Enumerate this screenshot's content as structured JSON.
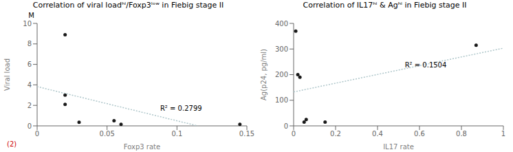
{
  "chart_data": [
    {
      "type": "scatter",
      "title": "Correlation of viral loadʰⁱ/Foxp3ˡᵒʷ in Fiebig stage II",
      "xlabel": "Foxp3 rate",
      "ylabel": "Viral load",
      "y_unit": "M",
      "notes": [
        {
          "text": "(2)",
          "color": "#cc0000"
        }
      ],
      "series": [
        {
          "type": "scatter",
          "color": "#1a1a1a",
          "x": [
            0.02,
            0.02,
            0.02,
            0.03,
            0.055,
            0.06,
            0.145
          ],
          "y": [
            8.9,
            3.0,
            2.1,
            0.35,
            0.5,
            0.15,
            0.15
          ]
        },
        {
          "type": "line",
          "color": "#aec6ca",
          "line_style": "dotted",
          "x": [
            0,
            0.114862
          ],
          "y": [
            3.832653,
            0
          ]
        }
      ],
      "annotations": [
        {
          "text": "R² = 0.2799",
          "x": 0.088,
          "y": 1.5
        }
      ],
      "xlim": [
        0,
        0.15
      ],
      "ylim": [
        0,
        10
      ],
      "xticks": [
        0,
        0.05,
        0.1,
        0.15
      ],
      "yticks": [
        0,
        2,
        4,
        6,
        8,
        10
      ]
    },
    {
      "type": "scatter",
      "title": "Correlation of IL17ʰⁱ & Agʰⁱ in Fiebig stage II",
      "xlabel": "IL17 rate",
      "ylabel": "Ag(p24, pg/ml)",
      "series": [
        {
          "type": "scatter",
          "color": "#1a1a1a",
          "x": [
            0.01,
            0.02,
            0.05,
            0.06,
            0.15,
            0.87,
            0.03
          ],
          "y": [
            370,
            200,
            15,
            25,
            15,
            315,
            190
          ]
        },
        {
          "type": "line",
          "color": "#aec6ca",
          "line_style": "dotted",
          "x": [
            0,
            1
          ],
          "y": [
            132.392477,
            303.193027
          ]
        }
      ],
      "annotations": [
        {
          "text": "R² = 0.1504",
          "x": 0.53,
          "y": 228
        }
      ],
      "xlim": [
        0,
        1
      ],
      "ylim": [
        0,
        400
      ],
      "xticks": [
        0,
        0.2,
        0.4,
        0.6,
        0.8,
        1
      ],
      "yticks": [
        0,
        100,
        200,
        300,
        400
      ]
    }
  ]
}
